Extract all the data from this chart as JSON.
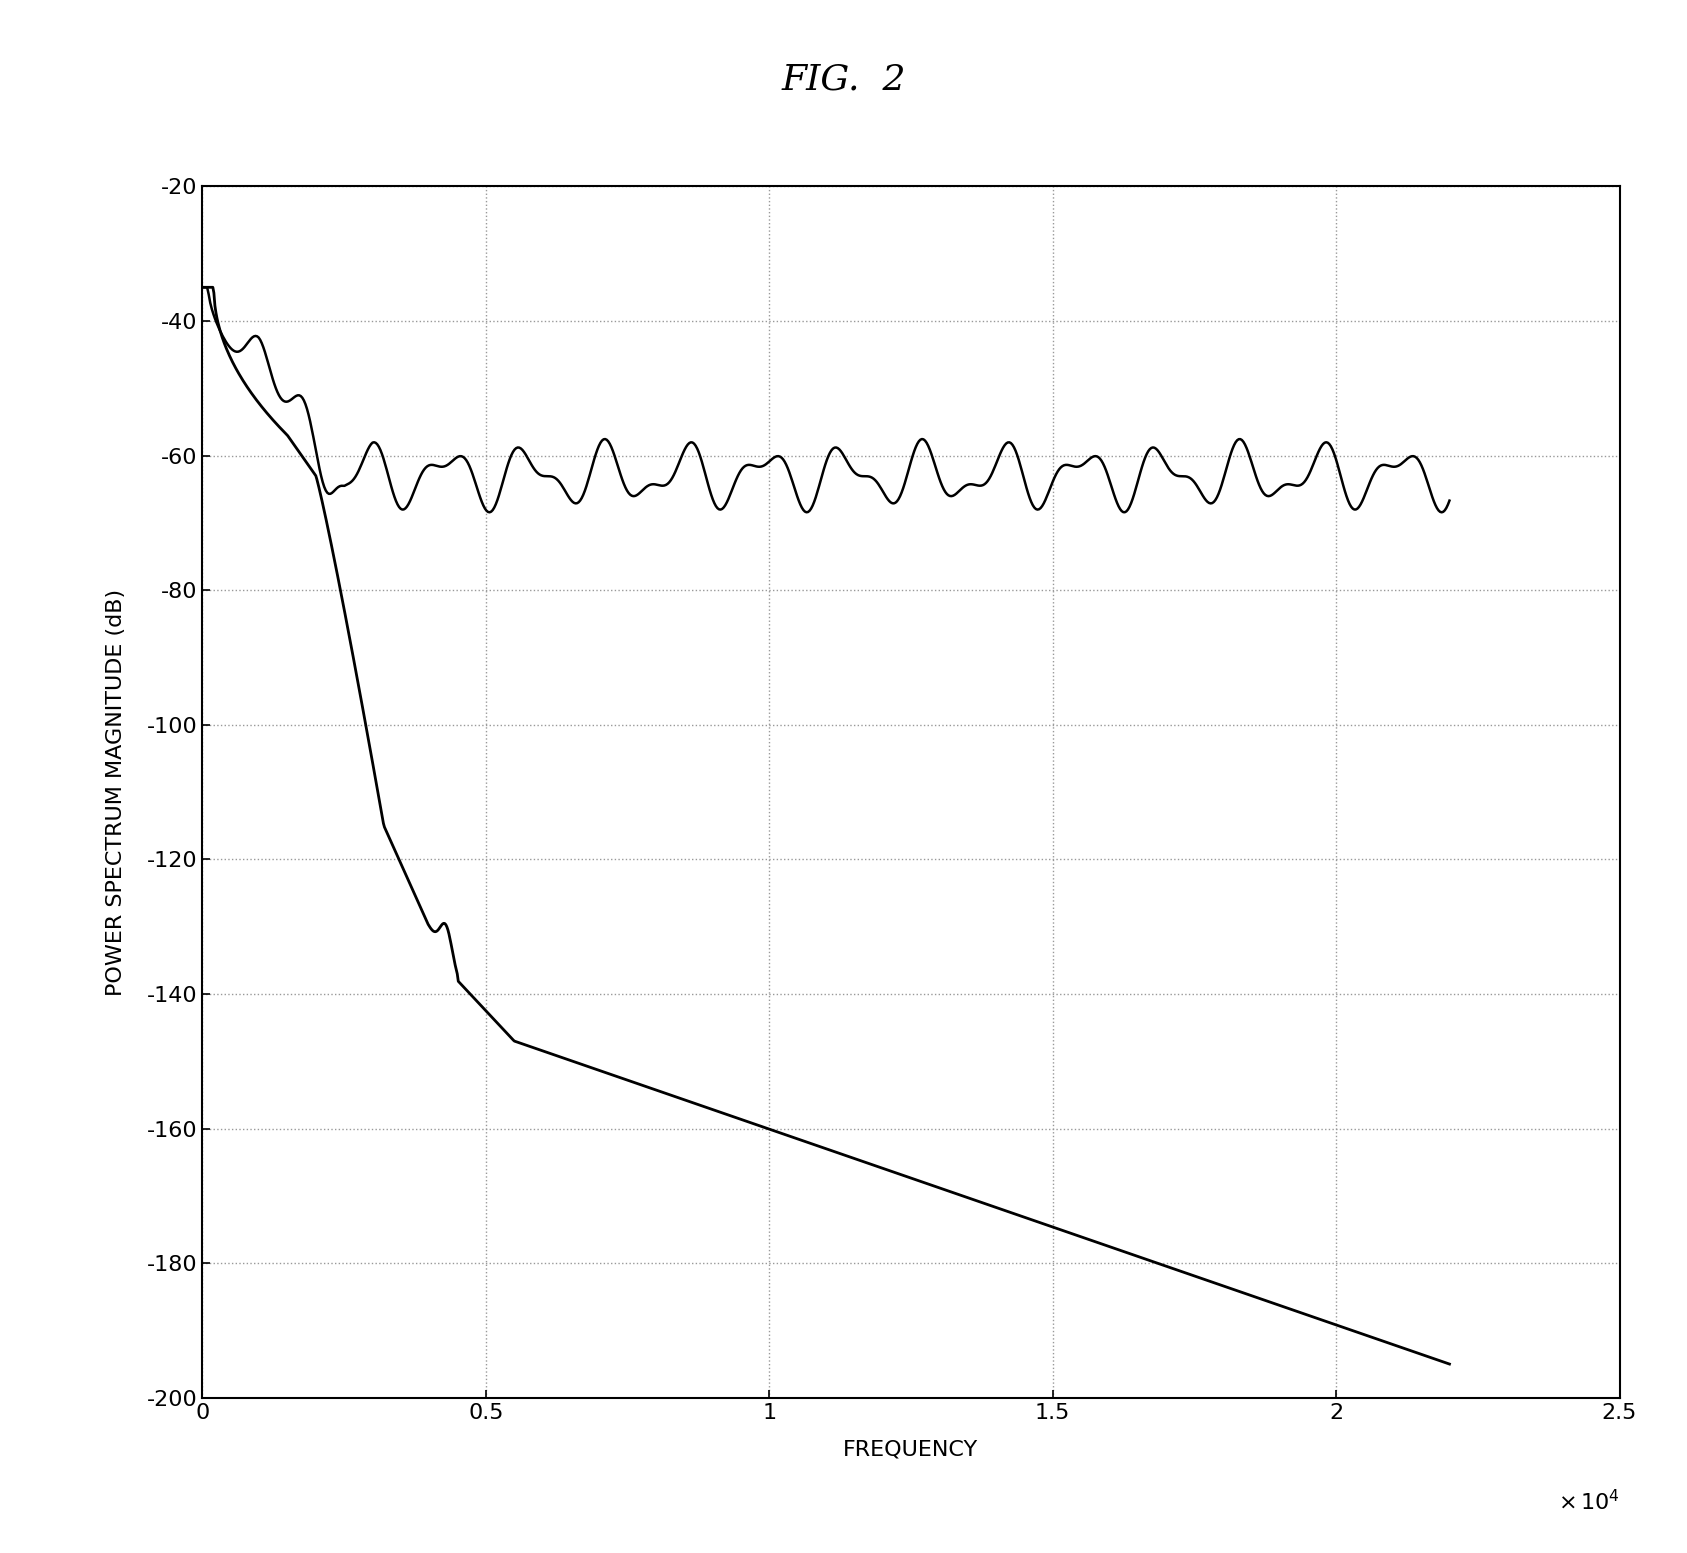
{
  "title": "FIG.  2",
  "xlabel": "FREQUENCY",
  "ylabel": "POWER SPECTRUM MAGNITUDE (dB)",
  "xlim": [
    0,
    25000
  ],
  "ylim": [
    -200,
    -20
  ],
  "xticks": [
    0,
    5000,
    10000,
    15000,
    20000,
    25000
  ],
  "xtick_labels": [
    "0",
    "0.5",
    "1",
    "1.5",
    "2",
    "2.5"
  ],
  "yticks": [
    -200,
    -180,
    -160,
    -140,
    -120,
    -100,
    -80,
    -60,
    -40,
    -20
  ],
  "grid_color": "#999999",
  "line_color": "#000000",
  "background_color": "#ffffff",
  "fig_width": 16.87,
  "fig_height": 15.53,
  "title_fontsize": 26,
  "axis_label_fontsize": 16,
  "tick_fontsize": 16
}
